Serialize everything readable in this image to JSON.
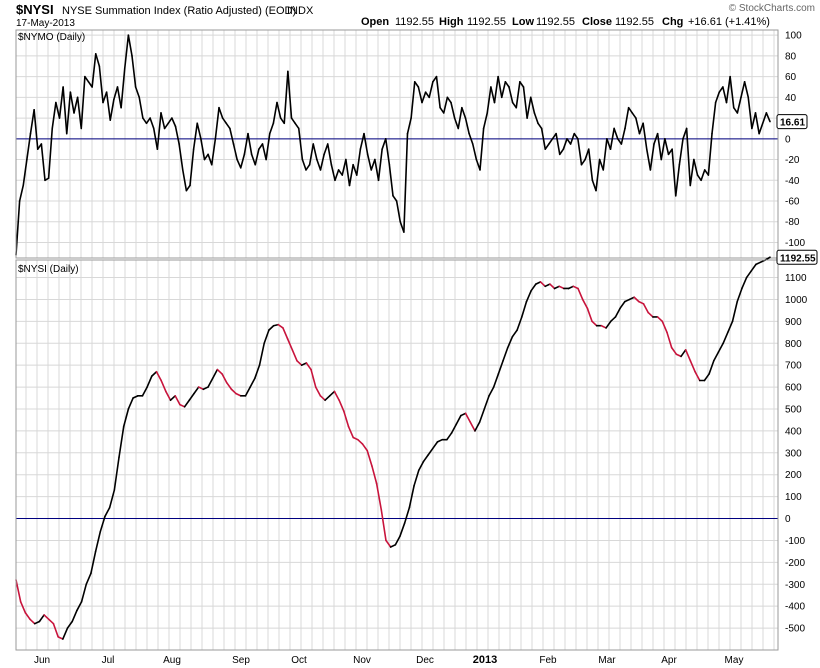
{
  "header": {
    "symbol": "$NYSI",
    "description": "NYSE Summation Index (Ratio Adjusted) (EOD)",
    "exchange": "INDX",
    "date": "17-May-2013",
    "watermark": "© StockCharts.com",
    "quote": {
      "open_label": "Open",
      "open": "1192.55",
      "high_label": "High",
      "high": "1192.55",
      "low_label": "Low",
      "low": "1192.55",
      "close_label": "Close",
      "close": "1192.55",
      "chg_label": "Chg",
      "chg": "+16.61 (+1.41%)"
    }
  },
  "colors": {
    "up_line": "#000000",
    "down_line": "#c8143c",
    "zero_line": "#000080",
    "grid": "#d8d8d8",
    "panel_border": "#9a9a9a"
  },
  "chart_data": [
    {
      "type": "line",
      "title": "$NYMO (Daily)",
      "last_value_label": "16.61",
      "ylim": [
        -115,
        105
      ],
      "y_ticks": [
        100,
        80,
        60,
        40,
        20,
        0,
        -20,
        -40,
        -60,
        -80,
        -100
      ],
      "zero_line": 0,
      "grid": true,
      "values": [
        -112,
        -60,
        -45,
        -20,
        5,
        28,
        -10,
        -5,
        -40,
        -38,
        10,
        35,
        20,
        50,
        5,
        45,
        25,
        40,
        10,
        60,
        55,
        50,
        82,
        70,
        35,
        45,
        18,
        38,
        50,
        30,
        68,
        100,
        80,
        50,
        40,
        20,
        15,
        20,
        10,
        -10,
        25,
        10,
        15,
        20,
        12,
        -5,
        -30,
        -50,
        -45,
        -10,
        15,
        0,
        -20,
        -15,
        -25,
        0,
        30,
        20,
        15,
        10,
        -5,
        -20,
        -28,
        -15,
        5,
        -15,
        -25,
        -10,
        -5,
        -20,
        5,
        15,
        35,
        20,
        15,
        65,
        20,
        15,
        10,
        -20,
        -30,
        -25,
        -5,
        -20,
        -30,
        -15,
        -5,
        -25,
        -40,
        -30,
        -35,
        -20,
        -45,
        -25,
        -35,
        -10,
        5,
        -15,
        -30,
        -20,
        -40,
        -10,
        0,
        -25,
        -55,
        -60,
        -80,
        -90,
        5,
        20,
        55,
        50,
        35,
        45,
        40,
        55,
        60,
        30,
        25,
        40,
        35,
        20,
        10,
        30,
        20,
        5,
        -5,
        -20,
        -30,
        10,
        25,
        50,
        35,
        60,
        40,
        55,
        50,
        35,
        30,
        55,
        50,
        20,
        40,
        25,
        15,
        10,
        -10,
        -5,
        0,
        5,
        -15,
        -10,
        0,
        -5,
        5,
        0,
        -25,
        -20,
        -10,
        -40,
        -50,
        -20,
        -30,
        0,
        -10,
        10,
        0,
        -5,
        10,
        30,
        25,
        20,
        5,
        15,
        -10,
        -30,
        -5,
        5,
        -20,
        0,
        -15,
        -10,
        -55,
        -25,
        0,
        10,
        -45,
        -20,
        -35,
        -40,
        -30,
        -35,
        5,
        35,
        45,
        50,
        35,
        60,
        30,
        25,
        40,
        55,
        40,
        10,
        25,
        5,
        15,
        25,
        16.61
      ]
    },
    {
      "type": "line",
      "title": "$NYSI (Daily)",
      "last_value_label": "1192.55",
      "ylim": [
        -600,
        1180
      ],
      "y_ticks": [
        1100,
        1000,
        900,
        800,
        700,
        600,
        500,
        400,
        300,
        200,
        100,
        0,
        -100,
        -200,
        -300,
        -400,
        -500
      ],
      "zero_line": 0,
      "grid": true,
      "x_ticks": [
        "Jun",
        "Jul",
        "Aug",
        "Sep",
        "Oct",
        "Nov",
        "Dec",
        "2013",
        "Feb",
        "Mar",
        "Apr",
        "May"
      ],
      "values": [
        -280,
        -380,
        -430,
        -460,
        -480,
        -470,
        -440,
        -460,
        -480,
        -540,
        -550,
        -500,
        -470,
        -420,
        -380,
        -300,
        -250,
        -150,
        -60,
        10,
        50,
        130,
        280,
        420,
        500,
        550,
        560,
        560,
        600,
        650,
        670,
        630,
        580,
        540,
        560,
        520,
        510,
        540,
        570,
        600,
        590,
        600,
        640,
        680,
        660,
        620,
        590,
        570,
        560,
        560,
        600,
        640,
        700,
        800,
        860,
        880,
        885,
        870,
        820,
        770,
        720,
        700,
        710,
        680,
        600,
        560,
        540,
        560,
        580,
        540,
        490,
        420,
        370,
        360,
        340,
        310,
        240,
        160,
        40,
        -100,
        -130,
        -120,
        -80,
        -20,
        50,
        150,
        220,
        260,
        290,
        320,
        350,
        360,
        360,
        390,
        430,
        470,
        480,
        440,
        400,
        440,
        500,
        560,
        600,
        660,
        720,
        780,
        830,
        860,
        920,
        990,
        1040,
        1070,
        1080,
        1060,
        1070,
        1050,
        1060,
        1050,
        1050,
        1060,
        1050,
        1000,
        960,
        900,
        880,
        880,
        870,
        900,
        920,
        960,
        990,
        1000,
        1010,
        990,
        980,
        940,
        920,
        920,
        900,
        850,
        780,
        750,
        740,
        770,
        720,
        670,
        630,
        630,
        660,
        720,
        760,
        800,
        850,
        900,
        990,
        1050,
        1100,
        1130,
        1160,
        1170,
        1180,
        1192.55
      ]
    }
  ]
}
